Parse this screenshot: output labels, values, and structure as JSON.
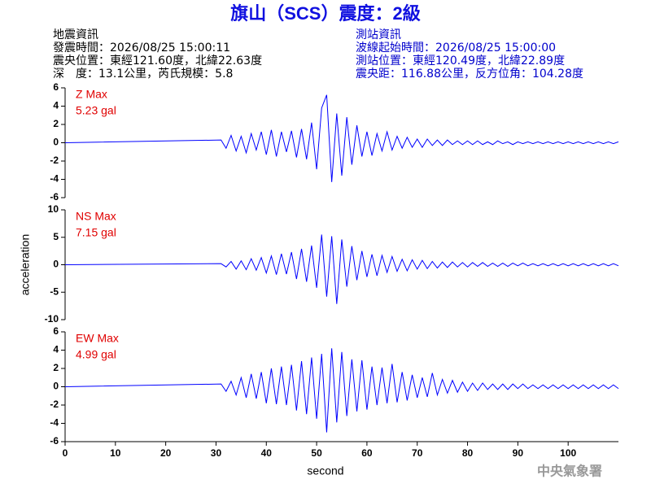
{
  "header": {
    "title": "旗山（SCS）震度：2級",
    "left": [
      "地震資訊",
      "發震時間：2026/08/25 15:00:11",
      "震央位置：東經121.60度，北緯22.63度",
      "深　度：13.1公里，芮氏規模：5.8"
    ],
    "right": [
      "測站資訊",
      "波線起始時間：2026/08/25 15:00:00",
      "測站位置：東經120.49度，北緯22.89度",
      "震央距：116.88公里，反方位角：104.28度"
    ],
    "footer": "中央氣象署"
  },
  "chart_data": [
    {
      "type": "line",
      "label": "Z Max",
      "max_label": "5.23 gal",
      "color": "#0000ff",
      "xlim": [
        0,
        110
      ],
      "ylim": [
        -6,
        6
      ],
      "yticks": [
        -6,
        -4,
        -2,
        0,
        2,
        4,
        6
      ],
      "x": [
        0,
        31,
        32,
        33,
        34,
        35,
        36,
        37,
        38,
        39,
        40,
        41,
        42,
        43,
        44,
        45,
        46,
        47,
        48,
        49,
        50,
        51,
        52,
        53,
        54,
        55,
        56,
        57,
        58,
        59,
        60,
        61,
        62,
        63,
        64,
        65,
        66,
        67,
        68,
        69,
        70,
        71,
        72,
        73,
        74,
        75,
        76,
        77,
        78,
        79,
        80,
        81,
        82,
        83,
        84,
        85,
        86,
        87,
        88,
        89,
        90,
        91,
        92,
        93,
        94,
        95,
        96,
        97,
        98,
        99,
        100,
        101,
        102,
        103,
        104,
        105,
        106,
        107,
        108,
        109,
        110
      ],
      "values": [
        0,
        0.3,
        -0.6,
        0.8,
        -0.9,
        0.7,
        -1.1,
        1.0,
        -0.8,
        1.2,
        -1.3,
        1.4,
        -1.5,
        1.2,
        -1.0,
        1.3,
        -1.6,
        1.5,
        -1.8,
        2.2,
        -2.9,
        3.8,
        5.23,
        -4.3,
        3.2,
        -3.6,
        2.8,
        -2.4,
        1.9,
        -1.5,
        1.2,
        -1.4,
        1.0,
        -0.9,
        1.2,
        -0.8,
        0.7,
        -0.6,
        0.6,
        -0.5,
        0.4,
        -0.5,
        0.4,
        -0.3,
        0.3,
        -0.3,
        0.3,
        -0.2,
        0.2,
        -0.2,
        0.2,
        -0.2,
        0.2,
        -0.2,
        0.1,
        -0.2,
        0.2,
        -0.1,
        0.1,
        -0.2,
        0.1,
        -0.1,
        0.1,
        -0.1,
        0.1,
        -0.1,
        0.1,
        -0.1,
        0.1,
        -0.1,
        0.1,
        -0.1,
        0.1,
        -0.1,
        0.1,
        -0.1,
        0.1,
        -0.1,
        0.1,
        -0.1,
        0.1
      ]
    },
    {
      "type": "line",
      "label": "NS Max",
      "max_label": "7.15 gal",
      "color": "#0000ff",
      "ylabel": "acceleration",
      "xlim": [
        0,
        110
      ],
      "ylim": [
        -10,
        10
      ],
      "yticks": [
        -10,
        -5,
        0,
        5,
        10
      ],
      "x": [
        0,
        31,
        32,
        33,
        34,
        35,
        36,
        37,
        38,
        39,
        40,
        41,
        42,
        43,
        44,
        45,
        46,
        47,
        48,
        49,
        50,
        51,
        52,
        53,
        54,
        55,
        56,
        57,
        58,
        59,
        60,
        61,
        62,
        63,
        64,
        65,
        66,
        67,
        68,
        69,
        70,
        71,
        72,
        73,
        74,
        75,
        76,
        77,
        78,
        79,
        80,
        81,
        82,
        83,
        84,
        85,
        86,
        87,
        88,
        89,
        90,
        91,
        92,
        93,
        94,
        95,
        96,
        97,
        98,
        99,
        100,
        101,
        102,
        103,
        104,
        105,
        106,
        107,
        108,
        109,
        110
      ],
      "values": [
        0,
        0.2,
        -0.4,
        0.6,
        -0.8,
        0.7,
        -0.9,
        1.1,
        -1.0,
        1.3,
        -1.5,
        1.6,
        -1.8,
        2.0,
        -1.7,
        2.3,
        -2.6,
        2.9,
        -3.1,
        3.5,
        -4.2,
        5.5,
        -5.8,
        5.2,
        -7.15,
        4.6,
        -4.0,
        3.4,
        -2.8,
        2.5,
        -2.2,
        1.9,
        -2.0,
        1.7,
        -1.4,
        1.5,
        -1.2,
        1.0,
        -1.1,
        0.9,
        -0.8,
        0.8,
        -0.7,
        0.6,
        -0.6,
        0.5,
        -0.5,
        0.5,
        -0.4,
        0.4,
        -0.4,
        0.4,
        -0.3,
        0.4,
        -0.3,
        0.3,
        -0.3,
        0.3,
        -0.3,
        0.3,
        -0.2,
        0.3,
        -0.2,
        0.2,
        -0.2,
        0.2,
        -0.2,
        0.2,
        -0.2,
        0.2,
        -0.2,
        0.2,
        -0.2,
        0.2,
        -0.2,
        0.2,
        -0.2,
        0.2,
        -0.2,
        0.2,
        -0.2
      ]
    },
    {
      "type": "line",
      "label": "EW Max",
      "max_label": "4.99 gal",
      "color": "#0000ff",
      "xlabel": "second",
      "xlim": [
        0,
        110
      ],
      "xticks": [
        0,
        10,
        20,
        30,
        40,
        50,
        60,
        70,
        80,
        90,
        100
      ],
      "ylim": [
        -6,
        6
      ],
      "yticks": [
        -6,
        -4,
        -2,
        0,
        2,
        4,
        6
      ],
      "x": [
        0,
        31,
        32,
        33,
        34,
        35,
        36,
        37,
        38,
        39,
        40,
        41,
        42,
        43,
        44,
        45,
        46,
        47,
        48,
        49,
        50,
        51,
        52,
        53,
        54,
        55,
        56,
        57,
        58,
        59,
        60,
        61,
        62,
        63,
        64,
        65,
        66,
        67,
        68,
        69,
        70,
        71,
        72,
        73,
        74,
        75,
        76,
        77,
        78,
        79,
        80,
        81,
        82,
        83,
        84,
        85,
        86,
        87,
        88,
        89,
        90,
        91,
        92,
        93,
        94,
        95,
        96,
        97,
        98,
        99,
        100,
        101,
        102,
        103,
        104,
        105,
        106,
        107,
        108,
        109,
        110
      ],
      "values": [
        0,
        0.3,
        -0.5,
        0.6,
        -0.9,
        1.0,
        -1.2,
        1.4,
        -1.3,
        1.6,
        -1.8,
        2.0,
        -1.9,
        2.2,
        -2.0,
        2.4,
        -2.6,
        2.8,
        -3.0,
        3.2,
        -3.5,
        3.6,
        -4.99,
        4.2,
        -3.9,
        3.8,
        -3.2,
        3.0,
        -2.7,
        2.9,
        -2.5,
        2.2,
        -2.0,
        2.1,
        -1.8,
        2.5,
        -1.7,
        1.6,
        -1.5,
        1.3,
        -1.2,
        1.0,
        -1.1,
        1.5,
        -0.9,
        0.8,
        -0.7,
        0.7,
        -0.6,
        0.5,
        -0.5,
        0.4,
        -0.4,
        0.4,
        -0.3,
        0.3,
        -0.3,
        0.3,
        -0.3,
        0.3,
        -0.2,
        0.3,
        -0.2,
        0.2,
        -0.2,
        0.2,
        -0.2,
        0.2,
        -0.2,
        0.2,
        -0.2,
        0.2,
        -0.2,
        0.2,
        -0.2,
        0.2,
        -0.2,
        0.2,
        -0.2,
        0.2,
        -0.2
      ]
    }
  ]
}
